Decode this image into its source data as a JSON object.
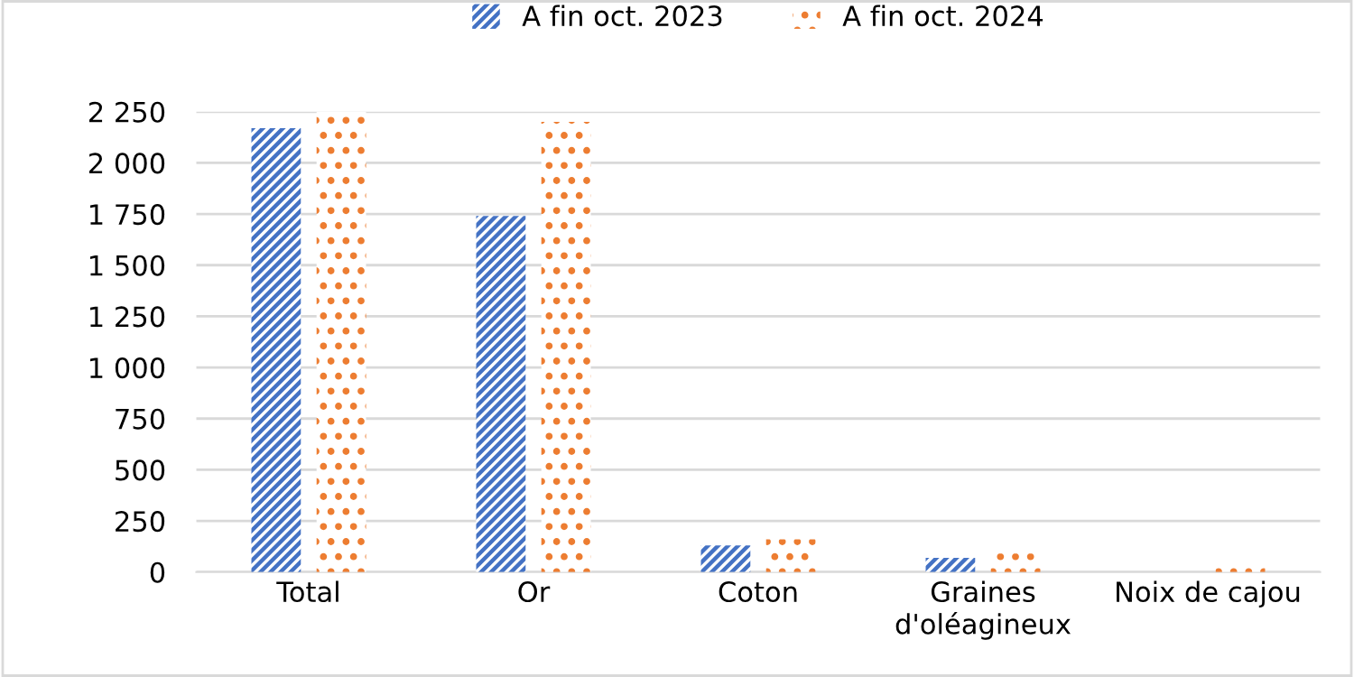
{
  "chart_data": {
    "type": "bar",
    "categories": [
      "Total",
      "Or",
      "Coton",
      "Graines d'oléagineux",
      "Noix de cajou"
    ],
    "series": [
      {
        "name": "A fin oct. 2023",
        "color": "#4472c4",
        "values": [
          2170,
          1740,
          130,
          70,
          0
        ]
      },
      {
        "name": "A fin oct. 2024",
        "color": "#ed7d31",
        "values": [
          2250,
          2200,
          160,
          90,
          50
        ]
      }
    ],
    "ylim": [
      0,
      2250
    ],
    "yticks": [
      {
        "value": 0,
        "label": "0"
      },
      {
        "value": 250,
        "label": "250"
      },
      {
        "value": 500,
        "label": "500"
      },
      {
        "value": 750,
        "label": "750"
      },
      {
        "value": 1000,
        "label": "1 000"
      },
      {
        "value": 1250,
        "label": "1 250"
      },
      {
        "value": 1500,
        "label": "1 500"
      },
      {
        "value": 1750,
        "label": "1 750"
      },
      {
        "value": 2000,
        "label": "2 000"
      },
      {
        "value": 2250,
        "label": "2 250"
      }
    ],
    "grid": "y",
    "legend": "top"
  }
}
